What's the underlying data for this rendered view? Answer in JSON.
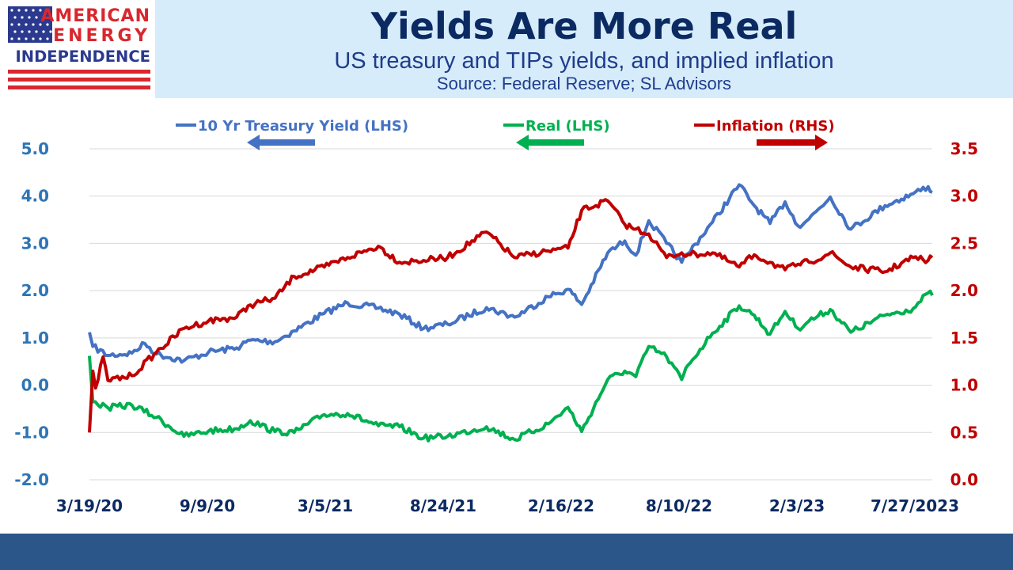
{
  "logo": {
    "lines": [
      "AMERICAN",
      "ENERGY",
      "INDEPENDENCE"
    ],
    "colors": {
      "red": "#d9272e",
      "blue": "#2b3a8f"
    }
  },
  "header": {
    "title": "Yields Are More Real",
    "subtitle": "US treasury and TIPs yields, and implied inflation",
    "source": "Source: Federal Reserve; SL Advisors"
  },
  "chart_data": {
    "type": "line",
    "x_tick_labels": [
      "3/19/20",
      "9/9/20",
      "3/5/21",
      "8/24/21",
      "2/16/22",
      "8/10/22",
      "2/3/23",
      "7/27/2023"
    ],
    "x_range": [
      "3/19/20",
      "8/2/23"
    ],
    "y_left": {
      "ticks": [
        "-2.0",
        "-1.0",
        "0.0",
        "1.0",
        "2.0",
        "3.0",
        "4.0",
        "5.0"
      ],
      "range": [
        -2,
        5
      ]
    },
    "y_right": {
      "ticks": [
        "0.0",
        "0.5",
        "1.0",
        "1.5",
        "2.0",
        "2.5",
        "3.0",
        "3.5"
      ],
      "range": [
        0,
        3.5
      ]
    },
    "grid": "horizontal",
    "legend_position": "top",
    "series": [
      {
        "name": "10 Yr Treasury Yield (LHS)",
        "axis": "left",
        "color": "#4472c4",
        "points": [
          [
            "3/19/20",
            1.12
          ],
          [
            "3/24/20",
            0.82
          ],
          [
            "4/15/20",
            0.63
          ],
          [
            "5/20/20",
            0.68
          ],
          [
            "6/8/20",
            0.88
          ],
          [
            "6/25/20",
            0.66
          ],
          [
            "8/4/20",
            0.52
          ],
          [
            "9/9/20",
            0.7
          ],
          [
            "10/20/20",
            0.79
          ],
          [
            "11/9/20",
            0.95
          ],
          [
            "12/15/20",
            0.92
          ],
          [
            "1/12/21",
            1.15
          ],
          [
            "2/25/21",
            1.52
          ],
          [
            "3/31/21",
            1.74
          ],
          [
            "5/15/21",
            1.63
          ],
          [
            "6/15/21",
            1.5
          ],
          [
            "7/20/21",
            1.2
          ],
          [
            "8/24/21",
            1.29
          ],
          [
            "10/20/21",
            1.64
          ],
          [
            "11/30/21",
            1.44
          ],
          [
            "1/18/22",
            1.87
          ],
          [
            "2/16/22",
            2.03
          ],
          [
            "3/8/22",
            1.71
          ],
          [
            "4/15/22",
            2.8
          ],
          [
            "5/10/22",
            3.05
          ],
          [
            "5/26/22",
            2.75
          ],
          [
            "6/14/22",
            3.48
          ],
          [
            "7/10/22",
            3.0
          ],
          [
            "8/1/22",
            2.6
          ],
          [
            "8/10/22",
            2.78
          ],
          [
            "9/15/22",
            3.45
          ],
          [
            "10/24/22",
            4.24
          ],
          [
            "11/15/22",
            3.8
          ],
          [
            "12/8/22",
            3.42
          ],
          [
            "12/30/22",
            3.88
          ],
          [
            "1/18/23",
            3.37
          ],
          [
            "2/3/23",
            3.52
          ],
          [
            "3/6/23",
            3.98
          ],
          [
            "4/5/23",
            3.3
          ],
          [
            "5/25/23",
            3.8
          ],
          [
            "7/5/23",
            4.05
          ],
          [
            "7/27/23",
            4.2
          ],
          [
            "8/2/23",
            4.08
          ]
        ]
      },
      {
        "name": "Real (LHS)",
        "axis": "left",
        "color": "#00b050",
        "points": [
          [
            "3/19/20",
            0.62
          ],
          [
            "3/24/20",
            -0.35
          ],
          [
            "4/15/20",
            -0.48
          ],
          [
            "5/20/20",
            -0.42
          ],
          [
            "6/25/20",
            -0.68
          ],
          [
            "8/4/20",
            -1.08
          ],
          [
            "9/9/20",
            -0.97
          ],
          [
            "10/20/20",
            -0.92
          ],
          [
            "11/9/20",
            -0.75
          ],
          [
            "12/15/20",
            -0.98
          ],
          [
            "1/12/21",
            -1.0
          ],
          [
            "2/25/21",
            -0.62
          ],
          [
            "3/31/21",
            -0.6
          ],
          [
            "5/15/21",
            -0.86
          ],
          [
            "6/15/21",
            -0.88
          ],
          [
            "7/20/21",
            -1.12
          ],
          [
            "8/24/21",
            -1.08
          ],
          [
            "10/20/21",
            -0.88
          ],
          [
            "11/30/21",
            -1.15
          ],
          [
            "1/18/22",
            -0.82
          ],
          [
            "2/16/22",
            -0.47
          ],
          [
            "3/8/22",
            -0.98
          ],
          [
            "4/15/22",
            0.12
          ],
          [
            "5/10/22",
            0.3
          ],
          [
            "5/26/22",
            0.18
          ],
          [
            "6/14/22",
            0.82
          ],
          [
            "7/10/22",
            0.6
          ],
          [
            "8/1/22",
            0.12
          ],
          [
            "8/10/22",
            0.42
          ],
          [
            "9/15/22",
            1.1
          ],
          [
            "10/24/22",
            1.68
          ],
          [
            "11/15/22",
            1.48
          ],
          [
            "12/8/22",
            1.08
          ],
          [
            "12/30/22",
            1.56
          ],
          [
            "1/18/23",
            1.2
          ],
          [
            "2/3/23",
            1.36
          ],
          [
            "3/6/23",
            1.6
          ],
          [
            "4/5/23",
            1.12
          ],
          [
            "5/25/23",
            1.48
          ],
          [
            "7/5/23",
            1.62
          ],
          [
            "7/27/23",
            1.95
          ],
          [
            "8/2/23",
            1.9
          ]
        ]
      },
      {
        "name": "Inflation (RHS)",
        "axis": "right",
        "color": "#c00000",
        "points": [
          [
            "3/19/20",
            0.5
          ],
          [
            "3/24/20",
            1.15
          ],
          [
            "3/28/20",
            0.97
          ],
          [
            "4/8/20",
            1.3
          ],
          [
            "4/15/20",
            1.05
          ],
          [
            "5/20/20",
            1.1
          ],
          [
            "6/25/20",
            1.35
          ],
          [
            "8/4/20",
            1.6
          ],
          [
            "9/9/20",
            1.68
          ],
          [
            "10/20/20",
            1.72
          ],
          [
            "11/9/20",
            1.85
          ],
          [
            "12/15/20",
            1.92
          ],
          [
            "1/12/21",
            2.15
          ],
          [
            "2/25/21",
            2.25
          ],
          [
            "3/31/21",
            2.35
          ],
          [
            "5/15/21",
            2.47
          ],
          [
            "6/15/21",
            2.3
          ],
          [
            "7/20/21",
            2.32
          ],
          [
            "8/24/21",
            2.35
          ],
          [
            "10/20/21",
            2.62
          ],
          [
            "11/30/21",
            2.35
          ],
          [
            "1/18/22",
            2.42
          ],
          [
            "2/16/22",
            2.45
          ],
          [
            "3/8/22",
            2.85
          ],
          [
            "4/15/22",
            2.95
          ],
          [
            "5/10/22",
            2.7
          ],
          [
            "5/26/22",
            2.65
          ],
          [
            "6/14/22",
            2.6
          ],
          [
            "7/10/22",
            2.35
          ],
          [
            "8/1/22",
            2.4
          ],
          [
            "8/10/22",
            2.38
          ],
          [
            "9/15/22",
            2.4
          ],
          [
            "10/24/22",
            2.25
          ],
          [
            "11/15/22",
            2.38
          ],
          [
            "12/8/22",
            2.3
          ],
          [
            "12/30/22",
            2.22
          ],
          [
            "1/18/23",
            2.28
          ],
          [
            "2/3/23",
            2.3
          ],
          [
            "3/6/23",
            2.4
          ],
          [
            "4/5/23",
            2.25
          ],
          [
            "5/25/23",
            2.2
          ],
          [
            "7/5/23",
            2.35
          ],
          [
            "7/27/23",
            2.32
          ],
          [
            "8/2/23",
            2.35
          ]
        ]
      }
    ]
  }
}
